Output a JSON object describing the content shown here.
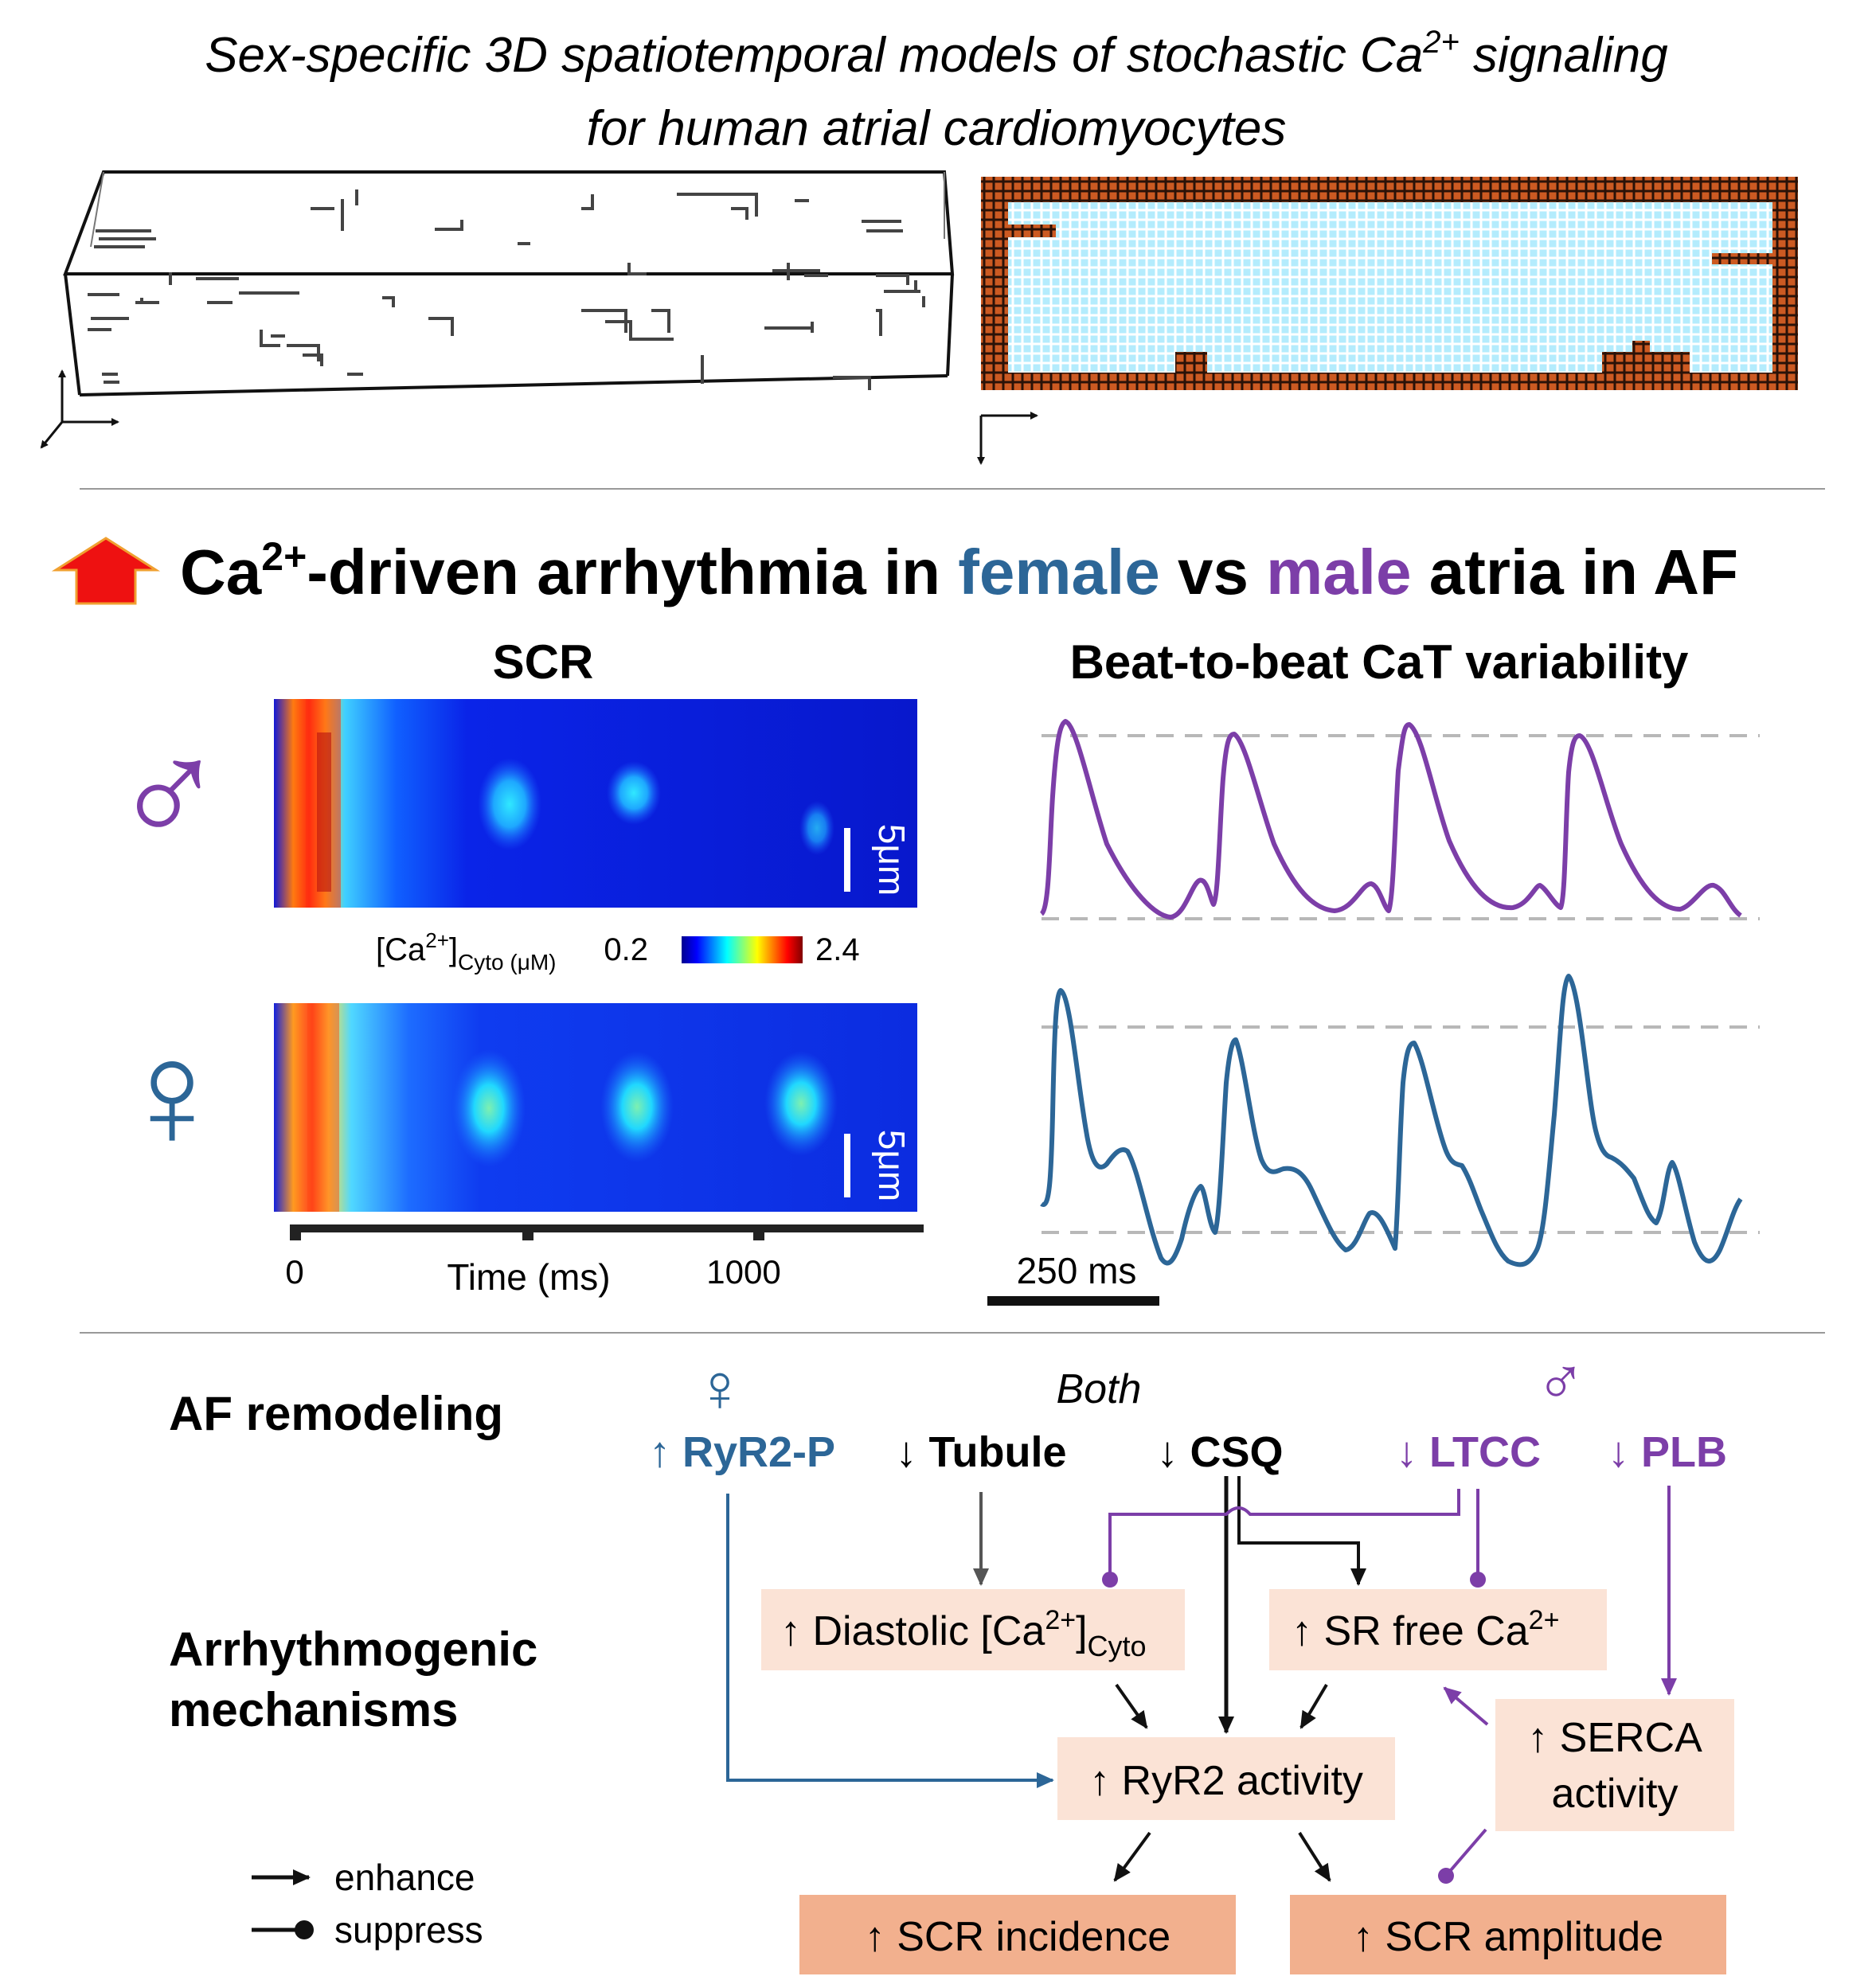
{
  "colors": {
    "female": "#2c6697",
    "male": "#7c3ea8",
    "box_light": "#fbe3d6",
    "box_dark": "#f2b08e",
    "red_arrow": "#ee1111",
    "lattice_fill": "#bfeefe",
    "lattice_border": "#c9541c",
    "gray_dash": "#b8b8b8"
  },
  "title": {
    "line1_pre": "Sex-specific 3D spatiotemporal models of stochastic Ca",
    "line1_sup": "2+",
    "line1_post": " signaling",
    "line2": "for human atrial cardiomyocytes"
  },
  "headline": {
    "ca": "Ca",
    "sup": "2+",
    "pre": "-driven arrhythmia in ",
    "female": "female",
    "vs": " vs ",
    "male": "male",
    "post": " atria in AF"
  },
  "scr_panel": {
    "title": "SCR",
    "male_symbol": "♂",
    "female_symbol": "♀",
    "scalebar_label": "5μm",
    "colorbar": {
      "label_pre": "[Ca",
      "label_sup": "2+",
      "label_post": "]",
      "label_sub": "Cyto (μM)",
      "min": "0.2",
      "max": "2.4"
    },
    "time_axis": {
      "label": "Time (ms)",
      "tick0": "0",
      "tick1": "1000"
    }
  },
  "cat_panel": {
    "title": "Beat-to-beat CaT variability",
    "scalebar_label": "250 ms"
  },
  "legend": {
    "enhance": "enhance",
    "suppress": "suppress"
  },
  "af": {
    "row_label": "AF remodeling",
    "mech_label_1": "Arrhythmogenic",
    "mech_label_2": "mechanisms",
    "both_label": "Both",
    "female_symbol": "♀",
    "male_symbol": "♂",
    "ryr2p": "↑ RyR2-P",
    "tubule_arrow": "↓ ",
    "tubule": "Tubule",
    "csq_arrow": "↓ ",
    "csq": "CSQ",
    "ltcc": "↓ LTCC",
    "plb": "↓ PLB"
  },
  "mechanisms": {
    "diastolic_pre": "↑ Diastolic [Ca",
    "diastolic_sup": "2+",
    "diastolic_post": "]",
    "diastolic_sub": "Cyto",
    "sr_pre": "↑ SR free Ca",
    "sr_sup": "2+",
    "ryr2": "↑ RyR2 activity",
    "serca_1": "↑ SERCA",
    "serca_2": "activity",
    "scr_incidence": "↑ SCR incidence",
    "scr_amplitude": "↑ SCR amplitude"
  }
}
